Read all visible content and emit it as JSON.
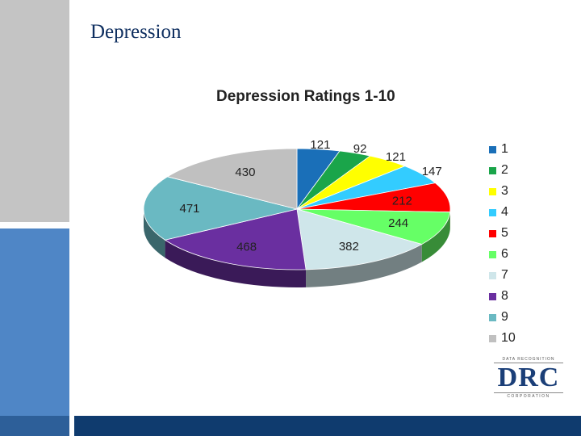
{
  "slide": {
    "title": "Depression"
  },
  "logo": {
    "top_text": "DATA RECOGNITION",
    "main_text": "DRC",
    "bottom_text": "CORPORATION"
  },
  "colors": {
    "side_top": "#c4c4c4",
    "side_bottom": "#4f86c6",
    "bottom_bar": "#0f3b6e",
    "title_text": "#0f2f60"
  },
  "chart_data": {
    "type": "pie",
    "title": "Depression Ratings 1-10",
    "legend_position": "right",
    "categories": [
      "1",
      "2",
      "3",
      "4",
      "5",
      "6",
      "7",
      "8",
      "9",
      "10"
    ],
    "values": [
      121,
      92,
      121,
      147,
      212,
      244,
      382,
      468,
      471,
      430
    ],
    "colors": [
      "#1a6fb8",
      "#1aa54a",
      "#ffff00",
      "#33ccff",
      "#ff0000",
      "#66ff66",
      "#cfe6ea",
      "#6a2fa0",
      "#6ab9c2",
      "#c0c0c0"
    ]
  }
}
